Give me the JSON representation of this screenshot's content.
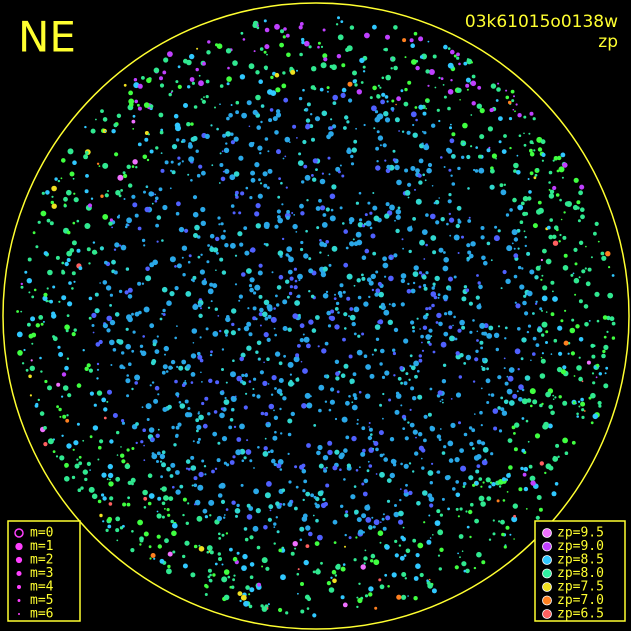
{
  "header": {
    "direction": "NE",
    "frame_id": "03k61015o0138w",
    "quantity": "zp"
  },
  "magnitude_legend": {
    "color": "#ff40ff",
    "items": [
      "m=0",
      "m=1",
      "m=2",
      "m=3",
      "m=4",
      "m=5",
      "m=6"
    ]
  },
  "zp_legend": {
    "items": [
      {
        "label": "zp=9.5",
        "color": "#f070ff"
      },
      {
        "label": "zp=9.0",
        "color": "#c040ff"
      },
      {
        "label": "zp=8.5",
        "color": "#30c8ff"
      },
      {
        "label": "zp=8.0",
        "color": "#30f0a0"
      },
      {
        "label": "zp=7.5",
        "color": "#f0e020"
      },
      {
        "label": "zp=7.0",
        "color": "#ff8020"
      },
      {
        "label": "zp=6.5",
        "color": "#ff6060"
      }
    ]
  }
}
